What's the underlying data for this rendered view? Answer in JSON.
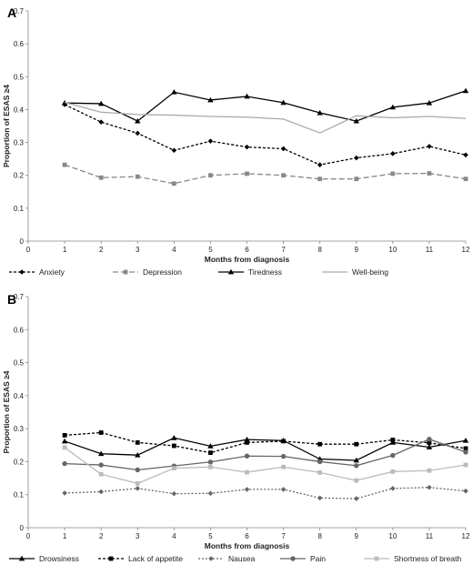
{
  "chart_data": [
    {
      "type": "line",
      "panel_label": "A",
      "xlabel": "Months from diagnosis",
      "ylabel": "Proportion of ESAS ≥4",
      "xlim": [
        0,
        12
      ],
      "ylim": [
        0,
        0.7
      ],
      "x_ticks": [
        0,
        1,
        2,
        3,
        4,
        5,
        6,
        7,
        8,
        9,
        10,
        11,
        12
      ],
      "y_ticks": [
        0,
        0.1,
        0.2,
        0.3,
        0.4,
        0.5,
        0.6,
        0.7
      ],
      "x": [
        1,
        2,
        3,
        4,
        5,
        6,
        7,
        8,
        9,
        10,
        11,
        12
      ],
      "legend_position": "bottom",
      "series": [
        {
          "name": "Anxiety",
          "color": "#000000",
          "dash": "3,2",
          "marker": "diamond",
          "values": [
            0.415,
            0.362,
            0.328,
            0.276,
            0.304,
            0.286,
            0.281,
            0.232,
            0.253,
            0.266,
            0.288,
            0.262
          ]
        },
        {
          "name": "Depression",
          "color": "#888888",
          "dash": "6,3",
          "marker": "square",
          "values": [
            0.232,
            0.193,
            0.196,
            0.175,
            0.2,
            0.205,
            0.2,
            0.189,
            0.189,
            0.205,
            0.206,
            0.189
          ]
        },
        {
          "name": "Tiredness",
          "color": "#000000",
          "dash": "",
          "marker": "triangle",
          "values": [
            0.42,
            0.418,
            0.365,
            0.453,
            0.429,
            0.44,
            0.421,
            0.39,
            0.365,
            0.407,
            0.42,
            0.457
          ]
        },
        {
          "name": "Well-being",
          "color": "#aaaaaa",
          "dash": "",
          "marker": "none",
          "values": [
            0.422,
            0.392,
            0.385,
            0.383,
            0.379,
            0.377,
            0.371,
            0.329,
            0.381,
            0.375,
            0.379,
            0.373
          ]
        }
      ]
    },
    {
      "type": "line",
      "panel_label": "B",
      "xlabel": "Months from diagnosis",
      "ylabel": "Proportion of ESAS ≥4",
      "xlim": [
        0,
        12
      ],
      "ylim": [
        0,
        0.7
      ],
      "x_ticks": [
        0,
        1,
        2,
        3,
        4,
        5,
        6,
        7,
        8,
        9,
        10,
        11,
        12
      ],
      "y_ticks": [
        0,
        0.1,
        0.2,
        0.3,
        0.4,
        0.5,
        0.6,
        0.7
      ],
      "x": [
        1,
        2,
        3,
        4,
        5,
        6,
        7,
        8,
        9,
        10,
        11,
        12
      ],
      "legend_position": "bottom",
      "series": [
        {
          "name": "Drowsiness",
          "color": "#000000",
          "dash": "",
          "marker": "triangle",
          "values": [
            0.262,
            0.224,
            0.22,
            0.272,
            0.247,
            0.267,
            0.264,
            0.208,
            0.204,
            0.258,
            0.244,
            0.264
          ]
        },
        {
          "name": "Lack of appetite",
          "color": "#000000",
          "dash": "3,2",
          "marker": "square",
          "values": [
            0.28,
            0.288,
            0.258,
            0.248,
            0.227,
            0.258,
            0.262,
            0.253,
            0.253,
            0.266,
            0.257,
            0.24
          ]
        },
        {
          "name": "Nausea",
          "color": "#666666",
          "dash": "2,2",
          "marker": "diamond",
          "values": [
            0.105,
            0.109,
            0.119,
            0.103,
            0.104,
            0.116,
            0.116,
            0.09,
            0.088,
            0.119,
            0.122,
            0.111
          ]
        },
        {
          "name": "Pain",
          "color": "#666666",
          "dash": "",
          "marker": "circle",
          "values": [
            0.194,
            0.19,
            0.175,
            0.187,
            0.199,
            0.217,
            0.216,
            0.2,
            0.188,
            0.219,
            0.268,
            0.229
          ]
        },
        {
          "name": "Shortness of breath",
          "color": "#bbbbbb",
          "dash": "",
          "marker": "square",
          "values": [
            0.243,
            0.162,
            0.134,
            0.18,
            0.184,
            0.168,
            0.184,
            0.167,
            0.143,
            0.17,
            0.173,
            0.19
          ]
        }
      ]
    }
  ]
}
